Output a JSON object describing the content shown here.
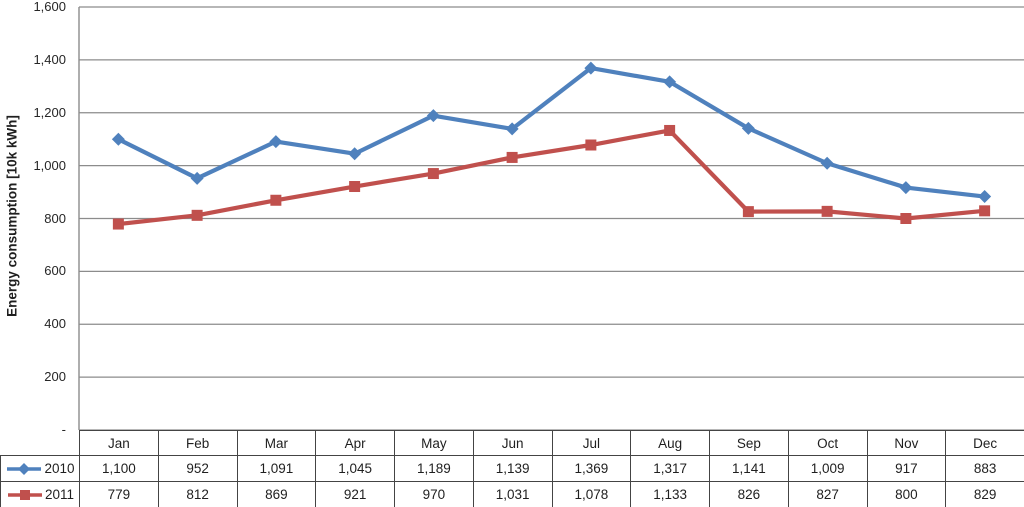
{
  "chart_data": {
    "type": "line",
    "title": "",
    "xlabel": "",
    "ylabel": "Energy consumption [10k kWh]",
    "categories": [
      "Jan",
      "Feb",
      "Mar",
      "Apr",
      "May",
      "Jun",
      "Jul",
      "Aug",
      "Sep",
      "Oct",
      "Nov",
      "Dec"
    ],
    "series": [
      {
        "name": "2010",
        "marker": "diamond",
        "color": "#4F81BD",
        "values": [
          1100,
          952,
          1091,
          1045,
          1189,
          1139,
          1369,
          1317,
          1141,
          1009,
          917,
          883
        ],
        "labels": [
          "1,100",
          "952",
          "1,091",
          "1,045",
          "1,189",
          "1,139",
          "1,369",
          "1,317",
          "1,141",
          "1,009",
          "917",
          "883"
        ]
      },
      {
        "name": "2011",
        "marker": "square",
        "color": "#C0504D",
        "values": [
          779,
          812,
          869,
          921,
          970,
          1031,
          1078,
          1133,
          826,
          827,
          800,
          829
        ],
        "labels": [
          "779",
          "812",
          "869",
          "921",
          "970",
          "1,031",
          "1,078",
          "1,133",
          "826",
          "827",
          "800",
          "829"
        ]
      }
    ],
    "ylim": [
      0,
      1600
    ],
    "ytick_values": [
      0,
      200,
      400,
      600,
      800,
      1000,
      1200,
      1400,
      1600
    ],
    "ytick_labels": [
      "-",
      "200",
      "400",
      "600",
      "800",
      "1,000",
      "1,200",
      "1,400",
      "1,600"
    ],
    "grid": true,
    "legend_position": "table-left-column",
    "colors": {
      "gridline": "#8C8C8C",
      "axis_line": "#8C8C8C",
      "table_border": "#444444",
      "text": "#262626",
      "background": "#FFFFFF"
    }
  }
}
